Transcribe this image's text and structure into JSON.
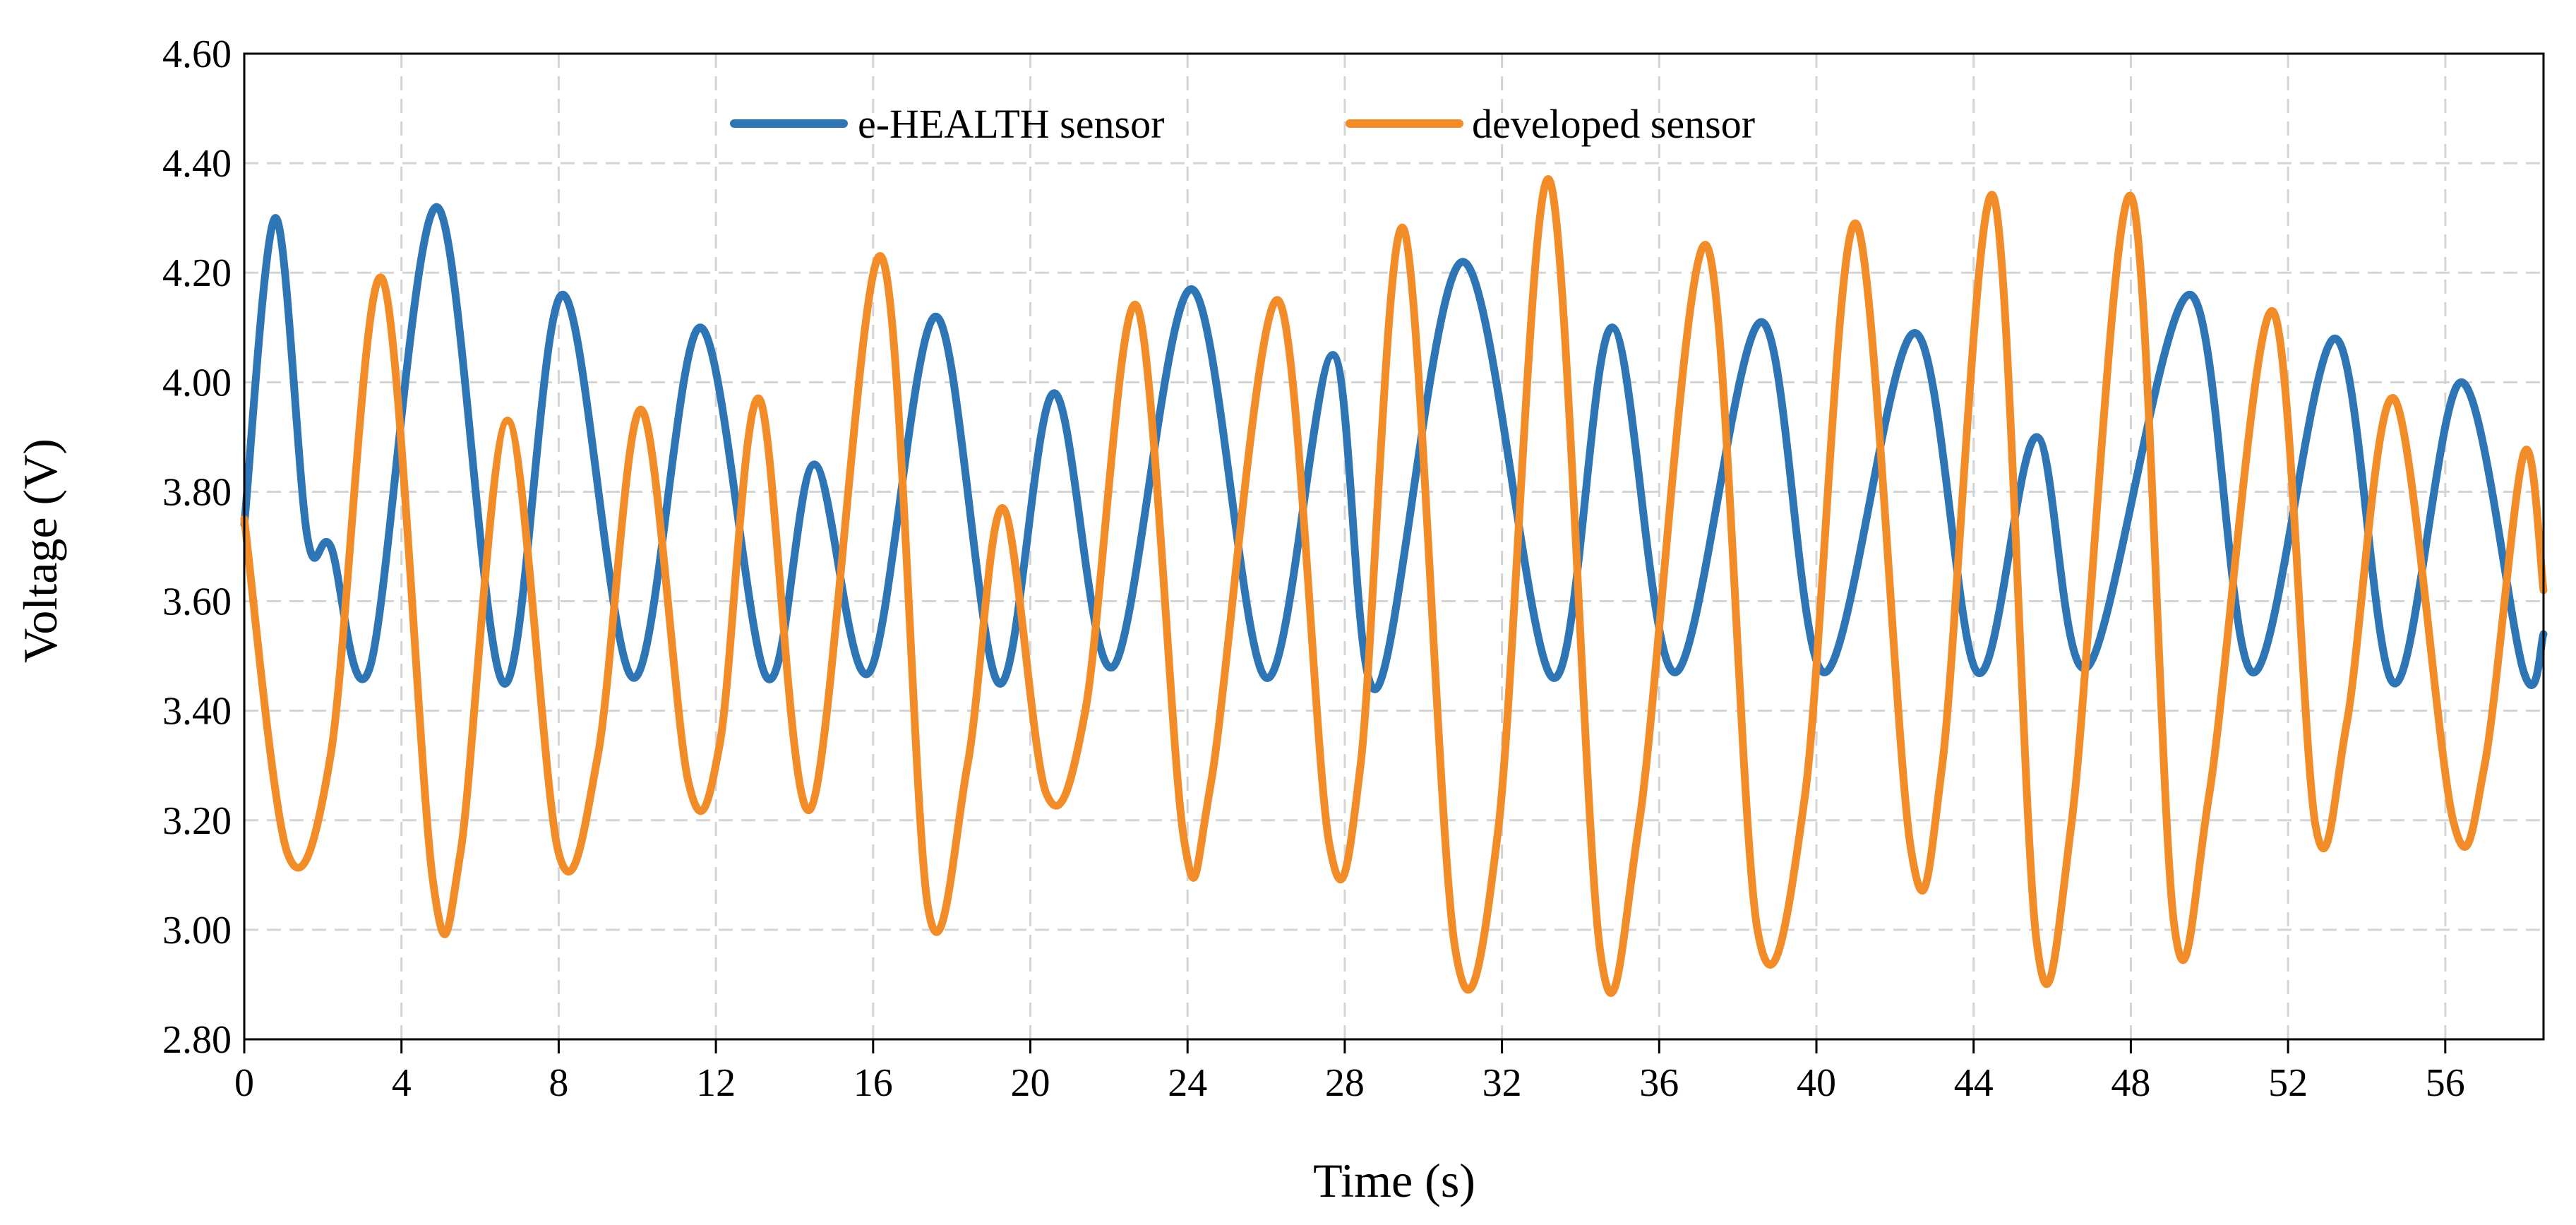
{
  "chart_data": {
    "type": "line",
    "title": "",
    "xlabel": "Time (s)",
    "ylabel": "Voltage (V)",
    "xlim": [
      0,
      58.5
    ],
    "ylim": [
      2.8,
      4.6
    ],
    "grid": true,
    "legend_position": "top-center",
    "x_ticks": [
      "0",
      "4",
      "8",
      "12",
      "16",
      "20",
      "24",
      "28",
      "32",
      "36",
      "40",
      "44",
      "48",
      "52",
      "56"
    ],
    "y_ticks": [
      "2.80",
      "3.00",
      "3.20",
      "3.40",
      "3.60",
      "3.80",
      "4.00",
      "4.20",
      "4.40",
      "4.60"
    ],
    "series": [
      {
        "name": "e-HEALTH sensor",
        "color": "#2E75B6",
        "x": [
          0,
          0.8,
          1.6,
          2.2,
          3.2,
          4.9,
          6.6,
          8.1,
          9.9,
          11.6,
          13.3,
          14.5,
          15.9,
          17.6,
          19.2,
          20.6,
          22.1,
          24.1,
          26.0,
          27.7,
          28.8,
          31.0,
          33.3,
          34.8,
          36.4,
          38.6,
          40.2,
          42.5,
          44.1,
          45.6,
          46.9,
          49.5,
          51.1,
          53.2,
          54.7,
          56.4,
          58.0,
          58.5
        ],
        "y": [
          3.74,
          4.3,
          3.72,
          3.7,
          3.48,
          4.32,
          3.45,
          4.16,
          3.46,
          4.1,
          3.46,
          3.85,
          3.47,
          4.12,
          3.45,
          3.98,
          3.48,
          4.17,
          3.46,
          4.05,
          3.44,
          4.22,
          3.46,
          4.1,
          3.47,
          4.11,
          3.47,
          4.09,
          3.47,
          3.9,
          3.48,
          4.16,
          3.47,
          4.08,
          3.45,
          4.0,
          3.47,
          3.54
        ]
      },
      {
        "name": "developed sensor",
        "color": "#F28C28",
        "x": [
          0,
          1.1,
          2.2,
          3.5,
          4.8,
          5.5,
          6.7,
          8.0,
          9.0,
          10.1,
          11.3,
          12.1,
          13.1,
          14.4,
          16.2,
          17.4,
          18.4,
          19.3,
          20.4,
          21.4,
          22.7,
          23.9,
          24.6,
          26.3,
          27.6,
          28.4,
          29.5,
          30.8,
          31.9,
          33.2,
          34.5,
          35.5,
          37.2,
          38.5,
          39.7,
          41.0,
          42.4,
          43.2,
          44.5,
          45.6,
          46.5,
          48.0,
          49.1,
          50.0,
          51.6,
          52.7,
          53.5,
          54.7,
          56.2,
          57.0,
          58.0,
          58.5
        ],
        "y": [
          3.75,
          3.14,
          3.32,
          4.19,
          3.09,
          3.14,
          3.93,
          3.14,
          3.32,
          3.95,
          3.27,
          3.34,
          3.97,
          3.22,
          4.23,
          3.04,
          3.3,
          3.77,
          3.25,
          3.4,
          4.14,
          3.17,
          3.27,
          4.15,
          3.16,
          3.3,
          4.28,
          2.97,
          3.18,
          4.37,
          2.96,
          3.2,
          4.25,
          3.0,
          3.24,
          4.29,
          3.15,
          3.3,
          4.34,
          2.98,
          3.2,
          4.34,
          3.01,
          3.25,
          4.13,
          3.19,
          3.38,
          3.97,
          3.2,
          3.3,
          3.87,
          3.62
        ]
      }
    ]
  }
}
